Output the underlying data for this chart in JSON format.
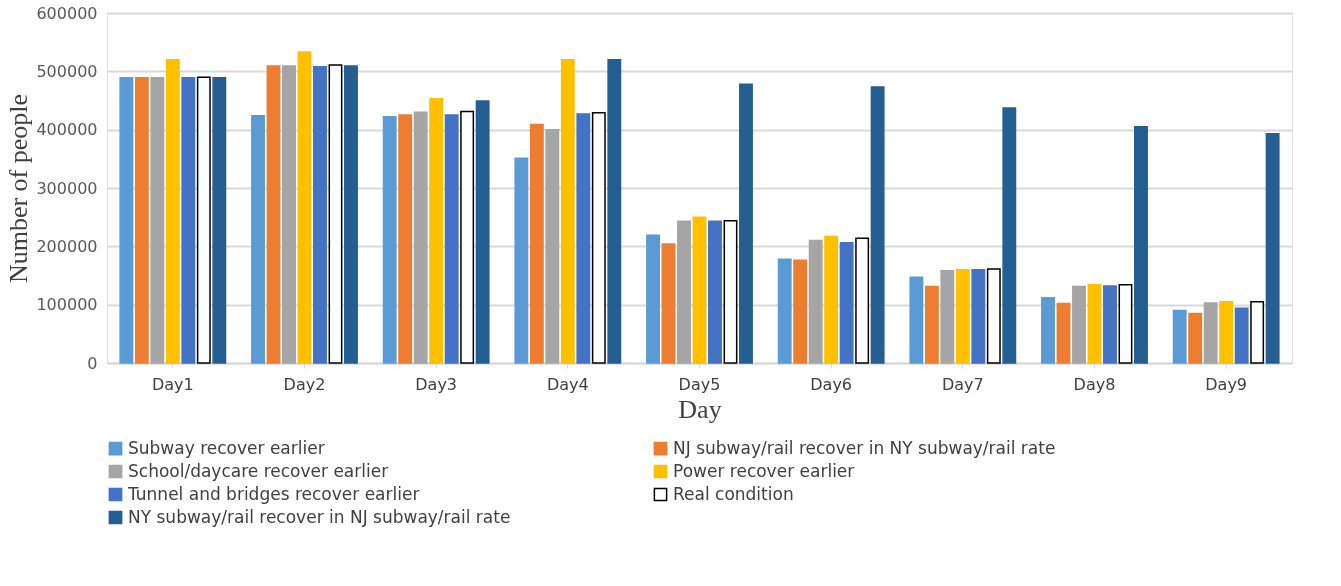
{
  "chart_data": {
    "type": "bar",
    "xlabel": "Day",
    "ylabel": "Number of people",
    "categories": [
      "Day1",
      "Day2",
      "Day3",
      "Day4",
      "Day5",
      "Day6",
      "Day7",
      "Day8",
      "Day9"
    ],
    "series": [
      {
        "name": "Subway recover earlier",
        "color": "#5b9bd5",
        "values": [
          489000,
          424000,
          422000,
          351000,
          219000,
          178000,
          147000,
          112000,
          90000
        ]
      },
      {
        "name": "NJ subway/rail recover in NY subway/rail rate",
        "color": "#ed7d31",
        "values": [
          489000,
          509000,
          425000,
          409000,
          204000,
          176000,
          131000,
          102000,
          85000
        ]
      },
      {
        "name": "School/daycare recover earlier",
        "color": "#a5a5a5",
        "values": [
          489000,
          509000,
          430000,
          400000,
          243000,
          210000,
          158000,
          131000,
          103000
        ]
      },
      {
        "name": "Power recover earlier",
        "color": "#ffc000",
        "values": [
          520000,
          533000,
          453000,
          520000,
          250000,
          217000,
          160000,
          134000,
          105000
        ]
      },
      {
        "name": "Tunnel and bridges recover earlier",
        "color": "#4472c4",
        "values": [
          489000,
          508000,
          425000,
          427000,
          243000,
          206000,
          160000,
          132000,
          94000
        ]
      },
      {
        "name": "Real condition",
        "color": "#ffffff",
        "values": [
          490000,
          511000,
          431000,
          429000,
          244000,
          214000,
          161000,
          134000,
          105000
        ]
      },
      {
        "name": "NY subway/rail recover in NJ subway/rail rate",
        "color": "#255e91",
        "values": [
          489000,
          509000,
          449000,
          520000,
          478000,
          473000,
          437000,
          405000,
          393000
        ]
      }
    ],
    "ylim": [
      0,
      600000
    ],
    "yticks": [
      0,
      100000,
      200000,
      300000,
      400000,
      500000,
      600000
    ],
    "grid": "y",
    "legend": "bottom"
  }
}
